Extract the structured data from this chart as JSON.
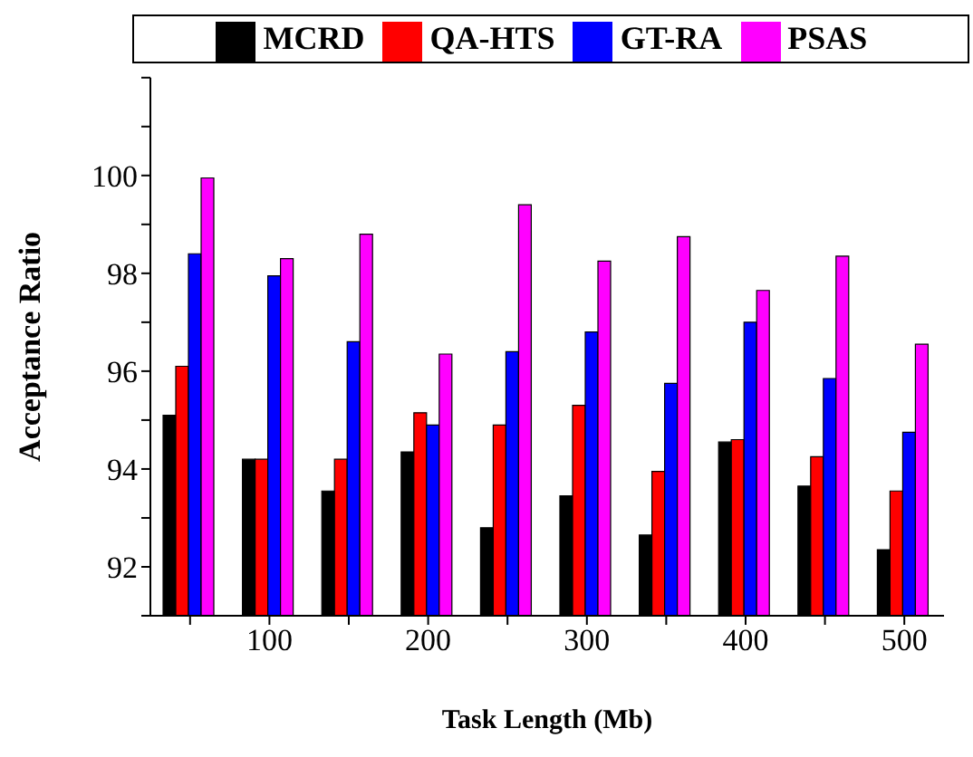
{
  "chart_data": {
    "type": "bar",
    "xlabel": "Task Length (Mb)",
    "ylabel": "Acceptance Ratio",
    "categories": [
      null,
      "100",
      null,
      "200",
      null,
      "300",
      null,
      "400",
      null,
      "500"
    ],
    "series": [
      {
        "name": "MCRD",
        "color": "#000000",
        "values": [
          95.1,
          94.2,
          93.55,
          94.35,
          92.8,
          93.45,
          92.65,
          94.55,
          93.65,
          92.35
        ]
      },
      {
        "name": "QA-HTS",
        "color": "#ff0000",
        "values": [
          96.1,
          94.2,
          94.2,
          95.15,
          94.9,
          95.3,
          93.95,
          94.6,
          94.25,
          93.55
        ]
      },
      {
        "name": "GT-RA",
        "color": "#0000ff",
        "values": [
          98.4,
          97.95,
          96.6,
          94.9,
          96.4,
          96.8,
          95.75,
          97.0,
          95.85,
          94.75
        ]
      },
      {
        "name": "PSAS",
        "color": "#ff00ff",
        "values": [
          99.95,
          98.3,
          98.8,
          96.35,
          99.4,
          98.25,
          98.75,
          97.65,
          98.35,
          96.55
        ]
      }
    ],
    "ylim": [
      91,
      102
    ],
    "yticks": [
      {
        "value": 91,
        "label": null
      },
      92,
      {
        "value": 93,
        "label": null
      },
      94,
      {
        "value": 95,
        "label": null
      },
      96,
      {
        "value": 97,
        "label": null
      },
      98,
      {
        "value": 99,
        "label": null
      },
      100,
      {
        "value": 101,
        "label": null
      },
      {
        "value": 102,
        "label": null
      }
    ],
    "legend": "top",
    "grid": false
  }
}
